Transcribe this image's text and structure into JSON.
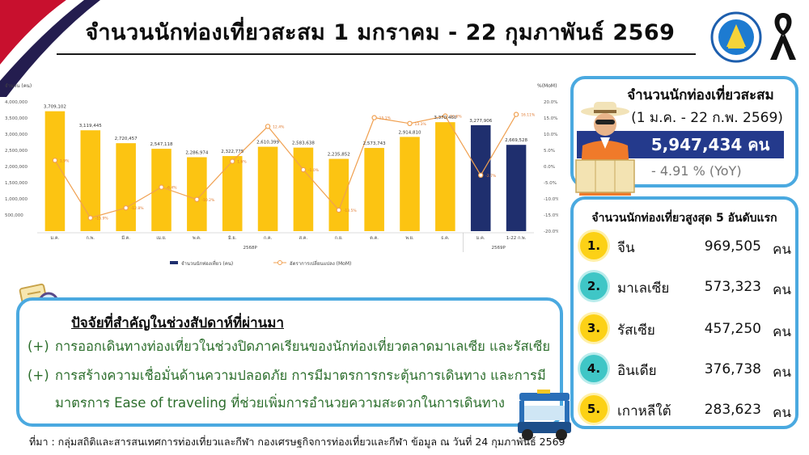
{
  "header": {
    "title": "จำนวนนักท่องเที่ยวสะสม 1 มกราคม - 22 กุมภาพันธ์ 2569"
  },
  "colors": {
    "bar_2568": "#fcc412",
    "bar_2569": "#1f2f6e",
    "line": "#f0a050",
    "accent_border": "#4aa9e0",
    "total_bar": "#243a8c"
  },
  "icons": [
    "thai-flag-icon",
    "ministry-logo-icon",
    "mourning-ribbon-icon",
    "clipboard-magnifier-icon",
    "tourist-icon",
    "tuktuk-icon"
  ],
  "chart_data": {
    "type": "bar",
    "ylabel_left": "จำนวน (คน)",
    "ylabel_right": "%(MoM)",
    "ylim": [
      0,
      4000000
    ],
    "y2lim": [
      -20,
      20
    ],
    "yticks": [
      "4,000,000",
      "3,500,000",
      "3,000,000",
      "2,500,000",
      "2,000,000",
      "1,500,000",
      "1,000,000",
      "500,000"
    ],
    "y2ticks": [
      "20.0%",
      "15.0%",
      "10.0%",
      "5.0%",
      "0.0%",
      "-5.0%",
      "-10.0%",
      "-15.0%",
      "-20.0%"
    ],
    "categories": [
      "ม.ค.",
      "ก.พ.",
      "มี.ค.",
      "เม.ย.",
      "พ.ค.",
      "มิ.ย.",
      "ก.ค.",
      "ส.ค.",
      "ก.ย.",
      "ต.ค.",
      "พ.ย.",
      "ธ.ค.",
      "ม.ค.",
      "1-22 ก.พ."
    ],
    "year_groups": [
      {
        "label": "2568P",
        "count": 12
      },
      {
        "label": "2569P",
        "count": 2
      }
    ],
    "series": [
      {
        "name": "จำนวนนักท่องเที่ยว (คน)",
        "type": "bar",
        "values": [
          3709102,
          3119445,
          2720457,
          2547118,
          2286974,
          2322775,
          2610399,
          2583638,
          2235852,
          2573743,
          2914810,
          3370460,
          3277906,
          2669528
        ],
        "labels": [
          "3,709,102",
          "3,119,445",
          "2,720,457",
          "2,547,118",
          "2,286,974",
          "2,322,775",
          "2,610,399",
          "2,583,638",
          "2,235,852",
          "2,573,743",
          "2,914,810",
          "3,370,460",
          "3,277,906",
          "2,669,528"
        ]
      },
      {
        "name": "อัตราการเปลี่ยนแปลง (MoM)",
        "type": "line",
        "values": [
          1.9,
          -15.9,
          -12.8,
          -6.4,
          -10.2,
          1.6,
          12.4,
          -1.0,
          -13.5,
          15.1,
          13.3,
          15.6,
          -2.7,
          16.1
        ],
        "labels": [
          "1.9%",
          "-15.9%",
          "-12.8%",
          "-6.4%",
          "-10.2%",
          "1.6%",
          "12.4%",
          "-1.0%",
          "-13.5%",
          "15.1%",
          "13.3%",
          "15.6%",
          "-2.7%",
          "16.11%"
        ]
      }
    ],
    "legend_placement": "bottom"
  },
  "summary": {
    "title": "จำนวนนักท่องเที่ยวสะสม",
    "period": "(1 ม.ค. - 22 ก.พ. 2569)",
    "total": "5,947,434 คน",
    "yoy": "- 4.91 % (YoY)"
  },
  "top5": {
    "title": "จำนวนนักท่องเที่ยวสูงสุด 5 อันดับแรก",
    "unit": "คน",
    "items": [
      {
        "rank": "1.",
        "country": "จีน",
        "value": "969,505"
      },
      {
        "rank": "2.",
        "country": "มาเลเซีย",
        "value": "573,323"
      },
      {
        "rank": "3.",
        "country": "รัสเซีย",
        "value": "457,250"
      },
      {
        "rank": "4.",
        "country": "อินเดีย",
        "value": "376,738"
      },
      {
        "rank": "5.",
        "country": "เกาหลีใต้",
        "value": "283,623"
      }
    ]
  },
  "factors": {
    "heading": "ปัจจัยที่สำคัญในช่วงสัปดาห์ที่ผ่านมา",
    "lines": [
      {
        "prefix": "(+)",
        "text": "การออกเดินทางท่องเที่ยวในช่วงปิดภาคเรียนของนักท่องเที่ยวตลาดมาเลเซีย และรัสเซีย"
      },
      {
        "prefix": "(+)",
        "text": "การสร้างความเชื่อมั่นด้านความปลอดภัย การมีมาตรการกระตุ้นการเดินทาง และการมี"
      },
      {
        "prefix": "",
        "text": "มาตรการ Ease of traveling ที่ช่วยเพิ่มการอำนวยความสะดวกในการเดินทาง"
      }
    ]
  },
  "source": "ที่มา : กลุ่มสถิติและสารสนเทศการท่องเที่ยวและกีฬา กองเศรษฐกิจการท่องเที่ยวและกีฬา ข้อมูล ณ วันที่ 24 กุมภาพันธ์ 2569"
}
